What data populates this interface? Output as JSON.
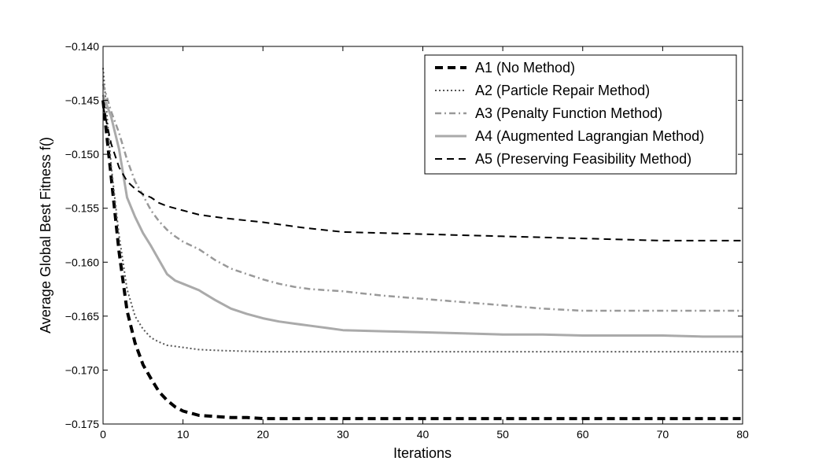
{
  "chart_data": {
    "type": "line",
    "title": "",
    "xlabel": "Iterations",
    "ylabel": "Average Global Best Fitness f()",
    "xlim": [
      0,
      80
    ],
    "ylim": [
      -0.175,
      -0.14
    ],
    "x_ticks": [
      0,
      10,
      20,
      30,
      40,
      50,
      60,
      70,
      80
    ],
    "x_tick_labels": [
      "0",
      "10",
      "20",
      "30",
      "40",
      "50",
      "60",
      "70",
      "80"
    ],
    "y_ticks": [
      -0.14,
      -0.145,
      -0.15,
      -0.155,
      -0.16,
      -0.165,
      -0.17,
      -0.175
    ],
    "y_tick_labels": [
      "−0.140",
      "−0.145",
      "−0.150",
      "−0.155",
      "−0.160",
      "−0.165",
      "−0.170",
      "−0.175"
    ],
    "grid": false,
    "legend_position": "top-right",
    "series": [
      {
        "name": "A1 (No Method)",
        "color": "#000000",
        "style": "bold-dashed",
        "x": [
          0,
          1,
          2,
          3,
          4,
          5,
          6,
          7,
          8,
          9,
          10,
          12,
          14,
          16,
          18,
          20,
          25,
          30,
          40,
          50,
          60,
          70,
          80
        ],
        "y": [
          -0.145,
          -0.152,
          -0.159,
          -0.1645,
          -0.1675,
          -0.1695,
          -0.1708,
          -0.172,
          -0.1728,
          -0.1734,
          -0.1738,
          -0.1742,
          -0.1743,
          -0.1744,
          -0.1744,
          -0.1745,
          -0.1745,
          -0.1745,
          -0.1745,
          -0.1745,
          -0.1745,
          -0.1745,
          -0.1745
        ]
      },
      {
        "name": "A2 (Particle Repair Method)",
        "color": "#555555",
        "style": "dotted",
        "x": [
          0,
          1,
          2,
          3,
          4,
          5,
          6,
          7,
          8,
          10,
          12,
          15,
          20,
          25,
          30,
          40,
          50,
          60,
          70,
          80
        ],
        "y": [
          -0.142,
          -0.151,
          -0.1575,
          -0.1625,
          -0.165,
          -0.1662,
          -0.167,
          -0.1674,
          -0.1677,
          -0.1679,
          -0.1681,
          -0.1682,
          -0.1683,
          -0.1683,
          -0.1683,
          -0.1683,
          -0.1683,
          -0.1683,
          -0.1683,
          -0.1683
        ]
      },
      {
        "name": "A3 (Penalty Function Method)",
        "color": "#999999",
        "style": "dash-dot",
        "x": [
          0,
          1,
          2,
          3,
          4,
          5,
          6,
          7,
          8,
          9,
          10,
          12,
          14,
          16,
          18,
          20,
          22,
          24,
          26,
          28,
          30,
          35,
          40,
          45,
          50,
          55,
          60,
          65,
          70,
          75,
          80
        ],
        "y": [
          -0.1435,
          -0.146,
          -0.148,
          -0.1505,
          -0.1525,
          -0.1538,
          -0.1552,
          -0.1562,
          -0.157,
          -0.1576,
          -0.1581,
          -0.1588,
          -0.1598,
          -0.1606,
          -0.1611,
          -0.1616,
          -0.162,
          -0.1623,
          -0.1625,
          -0.1626,
          -0.1627,
          -0.1631,
          -0.1634,
          -0.1637,
          -0.164,
          -0.1643,
          -0.1645,
          -0.1645,
          -0.1645,
          -0.1645,
          -0.1645
        ]
      },
      {
        "name": "A4 (Augmented Lagrangian Method)",
        "color": "#aaaaaa",
        "style": "solid-thick",
        "x": [
          0,
          1,
          2,
          3,
          4,
          5,
          6,
          7,
          8,
          9,
          10,
          12,
          14,
          16,
          18,
          20,
          22,
          24,
          26,
          28,
          30,
          35,
          40,
          45,
          50,
          55,
          60,
          65,
          70,
          75,
          80
        ],
        "y": [
          -0.1445,
          -0.1465,
          -0.1495,
          -0.154,
          -0.1558,
          -0.1573,
          -0.1585,
          -0.1598,
          -0.1611,
          -0.1617,
          -0.162,
          -0.1626,
          -0.1635,
          -0.1643,
          -0.1648,
          -0.1652,
          -0.1655,
          -0.1657,
          -0.1659,
          -0.1661,
          -0.1663,
          -0.1664,
          -0.1665,
          -0.1666,
          -0.1667,
          -0.1667,
          -0.1668,
          -0.1668,
          -0.1668,
          -0.1669,
          -0.1669
        ]
      },
      {
        "name": "A5 (Preserving Feasibility Method)",
        "color": "#000000",
        "style": "dashed",
        "x": [
          0,
          1,
          2,
          3,
          4,
          5,
          6,
          7,
          8,
          10,
          12,
          15,
          20,
          25,
          30,
          40,
          50,
          60,
          70,
          80
        ],
        "y": [
          -0.1455,
          -0.149,
          -0.1512,
          -0.1525,
          -0.1532,
          -0.1537,
          -0.154,
          -0.1545,
          -0.1548,
          -0.1552,
          -0.1556,
          -0.1559,
          -0.1563,
          -0.1568,
          -0.1572,
          -0.1574,
          -0.1576,
          -0.1578,
          -0.158,
          -0.158
        ]
      }
    ]
  }
}
